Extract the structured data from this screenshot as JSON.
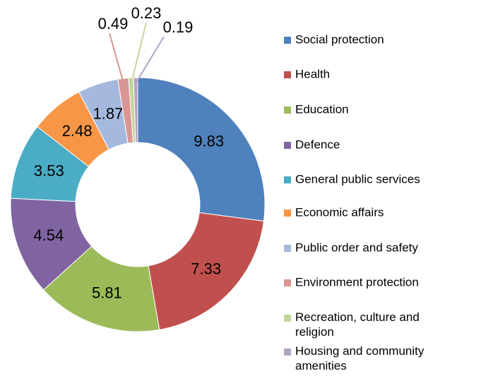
{
  "chart_data": {
    "type": "donut",
    "categories": [
      "Social protection",
      "Health",
      "Education",
      "Defence",
      "General public services",
      "Economic affairs",
      "Public order and safety",
      "Environment protection",
      "Recreation, culture and religion",
      "Housing and community amenities"
    ],
    "values": [
      9.83,
      7.33,
      5.81,
      4.54,
      3.53,
      2.48,
      1.87,
      0.49,
      0.23,
      0.19
    ],
    "colors": [
      "#4f81bd",
      "#c0504d",
      "#9bbb59",
      "#8064a2",
      "#4bacc6",
      "#f79646",
      "#a4b9dd",
      "#d99694",
      "#c3d69b",
      "#b3a2c7"
    ],
    "legend": "right"
  }
}
